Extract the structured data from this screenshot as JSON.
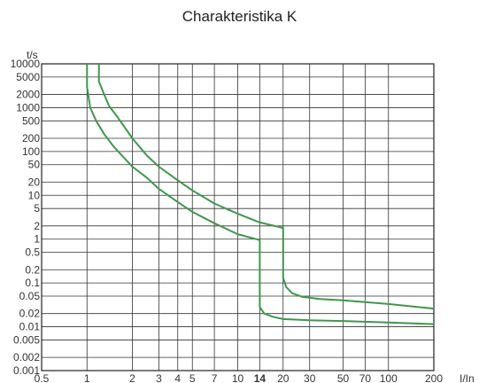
{
  "chart_data": {
    "type": "line",
    "title": "Charakteristika K",
    "xlabel": "I/In",
    "ylabel": "t/s",
    "x_scale": "log",
    "y_scale": "log",
    "xlim": [
      0.5,
      200
    ],
    "ylim": [
      0.001,
      10000
    ],
    "grid": true,
    "x_ticks": [
      {
        "value": 0.5,
        "label": "0.5",
        "bold": false
      },
      {
        "value": 1,
        "label": "1",
        "bold": false
      },
      {
        "value": 2,
        "label": "2",
        "bold": false
      },
      {
        "value": 3,
        "label": "3",
        "bold": false
      },
      {
        "value": 4,
        "label": "4",
        "bold": false
      },
      {
        "value": 5,
        "label": "5",
        "bold": false
      },
      {
        "value": 7,
        "label": "7",
        "bold": false
      },
      {
        "value": 10,
        "label": "10",
        "bold": false
      },
      {
        "value": 14,
        "label": "14",
        "bold": true
      },
      {
        "value": 20,
        "label": "20",
        "bold": false
      },
      {
        "value": 30,
        "label": "30",
        "bold": false
      },
      {
        "value": 50,
        "label": "50",
        "bold": false
      },
      {
        "value": 70,
        "label": "70",
        "bold": false
      },
      {
        "value": 100,
        "label": "100",
        "bold": false
      },
      {
        "value": 200,
        "label": "200",
        "bold": false
      }
    ],
    "y_ticks": [
      {
        "value": 10000,
        "label": "10000"
      },
      {
        "value": 5000,
        "label": "5000"
      },
      {
        "value": 2000,
        "label": "2000"
      },
      {
        "value": 1000,
        "label": "1000"
      },
      {
        "value": 500,
        "label": "500"
      },
      {
        "value": 200,
        "label": "200"
      },
      {
        "value": 100,
        "label": "100"
      },
      {
        "value": 50,
        "label": "50"
      },
      {
        "value": 20,
        "label": "20"
      },
      {
        "value": 10,
        "label": "10"
      },
      {
        "value": 5,
        "label": "5"
      },
      {
        "value": 2,
        "label": "2"
      },
      {
        "value": 1,
        "label": "1"
      },
      {
        "value": 0.5,
        "label": "0.5"
      },
      {
        "value": 0.2,
        "label": "0.2"
      },
      {
        "value": 0.1,
        "label": "0.1"
      },
      {
        "value": 0.05,
        "label": "0.05"
      },
      {
        "value": 0.02,
        "label": "0.02"
      },
      {
        "value": 0.01,
        "label": "0.01"
      },
      {
        "value": 0.005,
        "label": "0.005"
      },
      {
        "value": 0.002,
        "label": "0.002"
      },
      {
        "value": 0.001,
        "label": "0.001"
      }
    ],
    "series": [
      {
        "color": "#3a9a4a",
        "points": [
          [
            1.0,
            10000
          ],
          [
            1.0,
            3000
          ],
          [
            1.05,
            1000
          ],
          [
            1.15,
            500
          ],
          [
            1.3,
            250
          ],
          [
            1.5,
            130
          ],
          [
            2.0,
            45
          ],
          [
            2.5,
            25
          ],
          [
            3.0,
            14
          ],
          [
            4.0,
            7
          ],
          [
            5.0,
            4.2
          ],
          [
            7.0,
            2.3
          ],
          [
            10.0,
            1.3
          ],
          [
            14.0,
            0.95
          ],
          [
            14.0,
            0.1
          ],
          [
            14.0,
            0.028
          ],
          [
            15.0,
            0.02
          ],
          [
            17.0,
            0.017
          ],
          [
            20.0,
            0.015
          ],
          [
            30.0,
            0.014
          ],
          [
            50.0,
            0.0135
          ],
          [
            100.0,
            0.0125
          ],
          [
            200.0,
            0.0115
          ]
        ]
      },
      {
        "color": "#3a9a4a",
        "points": [
          [
            1.2,
            10000
          ],
          [
            1.2,
            4000
          ],
          [
            1.3,
            2000
          ],
          [
            1.4,
            1100
          ],
          [
            1.6,
            600
          ],
          [
            2.0,
            200
          ],
          [
            2.5,
            80
          ],
          [
            3.0,
            45
          ],
          [
            4.0,
            22
          ],
          [
            5.0,
            13
          ],
          [
            7.0,
            6.5
          ],
          [
            10.0,
            3.8
          ],
          [
            14.0,
            2.4
          ],
          [
            20.0,
            1.8
          ],
          [
            20.0,
            0.13
          ],
          [
            21.0,
            0.08
          ],
          [
            23.0,
            0.058
          ],
          [
            27.0,
            0.048
          ],
          [
            35.0,
            0.043
          ],
          [
            50.0,
            0.04
          ],
          [
            100.0,
            0.033
          ],
          [
            200.0,
            0.026
          ]
        ]
      }
    ]
  }
}
